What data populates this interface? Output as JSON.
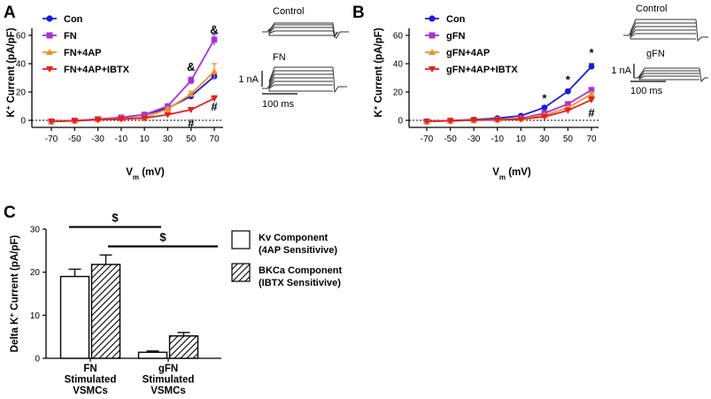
{
  "figure": {
    "panel_a": "A",
    "panel_b": "B",
    "panel_c": "C",
    "inset_a_top": "Control",
    "inset_a_bottom": "FN",
    "inset_b_top": "Control",
    "inset_b_bottom": "gFN",
    "scale_current": "1 nA",
    "scale_time": "100 ms",
    "colors": {
      "con": "#1a1adb",
      "fn": "#a831d8",
      "fourap": "#f0902a",
      "ibtx": "#e5201b",
      "trace": "#333333"
    }
  },
  "chart_data": [
    {
      "id": "A",
      "type": "line",
      "xlabel": "V",
      "xlabel_sub": "m",
      "xlabel_unit": " (mV)",
      "ylabel": "K",
      "ylabel_sup": "+",
      "ylabel_rest": " Current (pA/pF)",
      "x": [
        -70,
        -50,
        -30,
        -10,
        10,
        30,
        50,
        70
      ],
      "x_ticks": [
        "-70",
        "-50",
        "-30",
        "-10",
        "10",
        "30",
        "50",
        "70"
      ],
      "y_ticks": [
        "0",
        "20",
        "40",
        "60"
      ],
      "ylim": [
        -5,
        65
      ],
      "series": [
        {
          "name": "Con",
          "marker": "circle",
          "color": "#1a1adb",
          "values": [
            -0.8,
            -0.2,
            0.8,
            2.0,
            4.0,
            8.5,
            17.0,
            31.0
          ],
          "err": [
            0.3,
            0.3,
            0.4,
            0.5,
            0.8,
            1.0,
            1.5,
            2.0
          ]
        },
        {
          "name": "FN",
          "marker": "square",
          "color": "#a831d8",
          "values": [
            -0.8,
            -0.2,
            0.8,
            2.0,
            4.0,
            10.0,
            28.0,
            57.0
          ],
          "err": [
            0.3,
            0.3,
            0.4,
            0.5,
            0.8,
            1.0,
            2.5,
            4.0
          ]
        },
        {
          "name": "FN+4AP",
          "marker": "triangle-up",
          "color": "#f0902a",
          "values": [
            -0.8,
            -0.3,
            0.5,
            1.2,
            2.0,
            8.0,
            18.5,
            34.5
          ],
          "err": [
            0.3,
            0.3,
            0.4,
            0.5,
            0.8,
            1.0,
            2.0,
            5.5
          ]
        },
        {
          "name": "FN+4AP+IBTX",
          "marker": "triangle-down",
          "color": "#e5201b",
          "values": [
            -0.8,
            -0.4,
            0.4,
            0.9,
            1.6,
            4.0,
            7.5,
            15.5
          ],
          "err": [
            0.3,
            0.3,
            0.4,
            0.5,
            0.6,
            0.8,
            1.0,
            1.8
          ]
        }
      ],
      "annotations": [
        {
          "text": "&",
          "x": 70,
          "y": 64.5
        },
        {
          "text": "&",
          "x": 50,
          "y": 38
        },
        {
          "text": "#",
          "x": 70,
          "y": 10
        },
        {
          "text": "#",
          "x": 50,
          "y": -2
        }
      ]
    },
    {
      "id": "B",
      "type": "line",
      "xlabel": "V",
      "xlabel_sub": "m",
      "xlabel_unit": " (mV)",
      "ylabel": "K",
      "ylabel_sup": "+",
      "ylabel_rest": " Current (pA/pF)",
      "x": [
        -70,
        -50,
        -30,
        -10,
        10,
        30,
        50,
        70
      ],
      "x_ticks": [
        "-70",
        "-50",
        "-30",
        "-10",
        "10",
        "30",
        "50",
        "70"
      ],
      "y_ticks": [
        "0",
        "20",
        "40",
        "60"
      ],
      "ylim": [
        -5,
        65
      ],
      "series": [
        {
          "name": "Con",
          "marker": "circle",
          "color": "#1a1adb",
          "values": [
            -0.8,
            -0.2,
            0.5,
            1.5,
            3.2,
            9.0,
            20.5,
            38.0
          ],
          "err": [
            0.3,
            0.3,
            0.4,
            0.5,
            0.7,
            1.0,
            1.2,
            2.0
          ]
        },
        {
          "name": "gFN",
          "marker": "square",
          "color": "#a831d8",
          "values": [
            -0.8,
            -0.3,
            0.2,
            0.6,
            1.5,
            5.0,
            11.5,
            21.5
          ],
          "err": [
            0.3,
            0.3,
            0.3,
            0.4,
            0.5,
            0.8,
            1.0,
            1.5
          ]
        },
        {
          "name": "gFN+4AP",
          "marker": "triangle-up",
          "color": "#f0902a",
          "values": [
            -0.8,
            -0.3,
            0.2,
            0.5,
            1.2,
            3.5,
            9.0,
            18.5
          ],
          "err": [
            0.3,
            0.3,
            0.3,
            0.4,
            0.5,
            0.7,
            1.0,
            1.5
          ]
        },
        {
          "name": "gFN+4AP+IBTX",
          "marker": "triangle-down",
          "color": "#e5201b",
          "values": [
            -0.8,
            -0.3,
            0.1,
            0.3,
            0.8,
            2.5,
            7.0,
            14.5
          ],
          "err": [
            0.3,
            0.3,
            0.3,
            0.4,
            0.5,
            0.7,
            1.5,
            2.0
          ]
        }
      ],
      "annotations": [
        {
          "text": "*",
          "x": 70,
          "y": 48
        },
        {
          "text": "*",
          "x": 50,
          "y": 29
        },
        {
          "text": "*",
          "x": 30,
          "y": 16
        },
        {
          "text": "#",
          "x": 70,
          "y": 5.5
        }
      ]
    },
    {
      "id": "C",
      "type": "bar",
      "ylabel": "Delta K",
      "ylabel_sup": "+",
      "ylabel_rest": " Current (pA/pF)",
      "categories": [
        {
          "lines": [
            "FN",
            "Stimulated",
            "VSMCs"
          ]
        },
        {
          "lines": [
            "gFN",
            "Stimulated",
            "VSMCs"
          ]
        }
      ],
      "y_ticks": [
        "0",
        "10",
        "20",
        "30"
      ],
      "ylim": [
        0,
        30
      ],
      "series": [
        {
          "name": "Kv Component",
          "sub": "(4AP Sensitivive)",
          "fill": "open",
          "values": [
            19.0,
            1.4
          ],
          "err": [
            1.7,
            0.3
          ]
        },
        {
          "name": "BKCa Component",
          "sub": "(IBTX Sensitivive)",
          "fill": "hatched",
          "values": [
            21.8,
            5.2
          ],
          "err": [
            2.2,
            0.8
          ]
        }
      ],
      "brackets": [
        {
          "text": "$",
          "from_category": 0,
          "from_series": 0,
          "to_category": 1,
          "to_series": 0,
          "y": 30.5
        },
        {
          "text": "$",
          "from_category": 0,
          "from_series": 1,
          "to_category": 1,
          "to_series": 1,
          "y": 26.0
        }
      ]
    }
  ]
}
